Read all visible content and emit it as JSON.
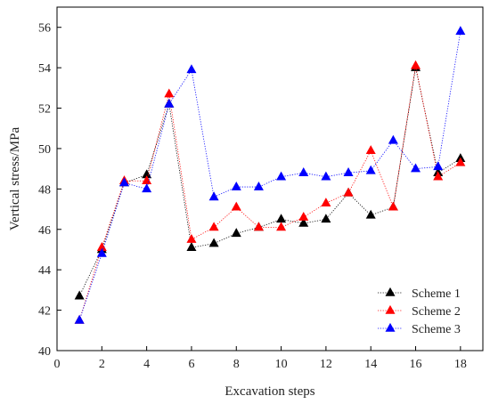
{
  "chart_data": {
    "type": "line",
    "xlabel": "Excavation steps",
    "ylabel": "Vertical stress/MPa",
    "xlim": [
      0,
      19
    ],
    "ylim": [
      40,
      57
    ],
    "xticks": [
      0,
      2,
      4,
      6,
      8,
      10,
      12,
      14,
      16,
      18
    ],
    "yticks": [
      40,
      42,
      44,
      46,
      48,
      50,
      52,
      54,
      56
    ],
    "x": [
      1,
      2,
      3,
      4,
      5,
      6,
      7,
      8,
      9,
      10,
      11,
      12,
      13,
      14,
      15,
      16,
      17,
      18
    ],
    "grid": false,
    "legend_position": "bottom-right",
    "marker": "triangle",
    "line_style": "dotted",
    "series": [
      {
        "name": "Scheme 1",
        "color": "#000000",
        "values": [
          42.7,
          45.0,
          48.3,
          48.7,
          52.2,
          45.1,
          45.3,
          45.8,
          46.1,
          46.5,
          46.3,
          46.5,
          47.8,
          46.7,
          47.1,
          54.0,
          48.8,
          49.5
        ]
      },
      {
        "name": "Scheme 2",
        "color": "#ff0000",
        "values": [
          41.5,
          45.1,
          48.4,
          48.4,
          52.7,
          45.5,
          46.1,
          47.1,
          46.1,
          46.1,
          46.6,
          47.3,
          47.8,
          49.9,
          47.1,
          54.1,
          48.6,
          49.3
        ]
      },
      {
        "name": "Scheme 3",
        "color": "#0000ff",
        "values": [
          41.5,
          44.8,
          48.3,
          48.0,
          52.2,
          53.9,
          47.6,
          48.1,
          48.1,
          48.6,
          48.8,
          48.6,
          48.8,
          48.9,
          50.4,
          49.0,
          49.1,
          55.8
        ]
      }
    ]
  }
}
